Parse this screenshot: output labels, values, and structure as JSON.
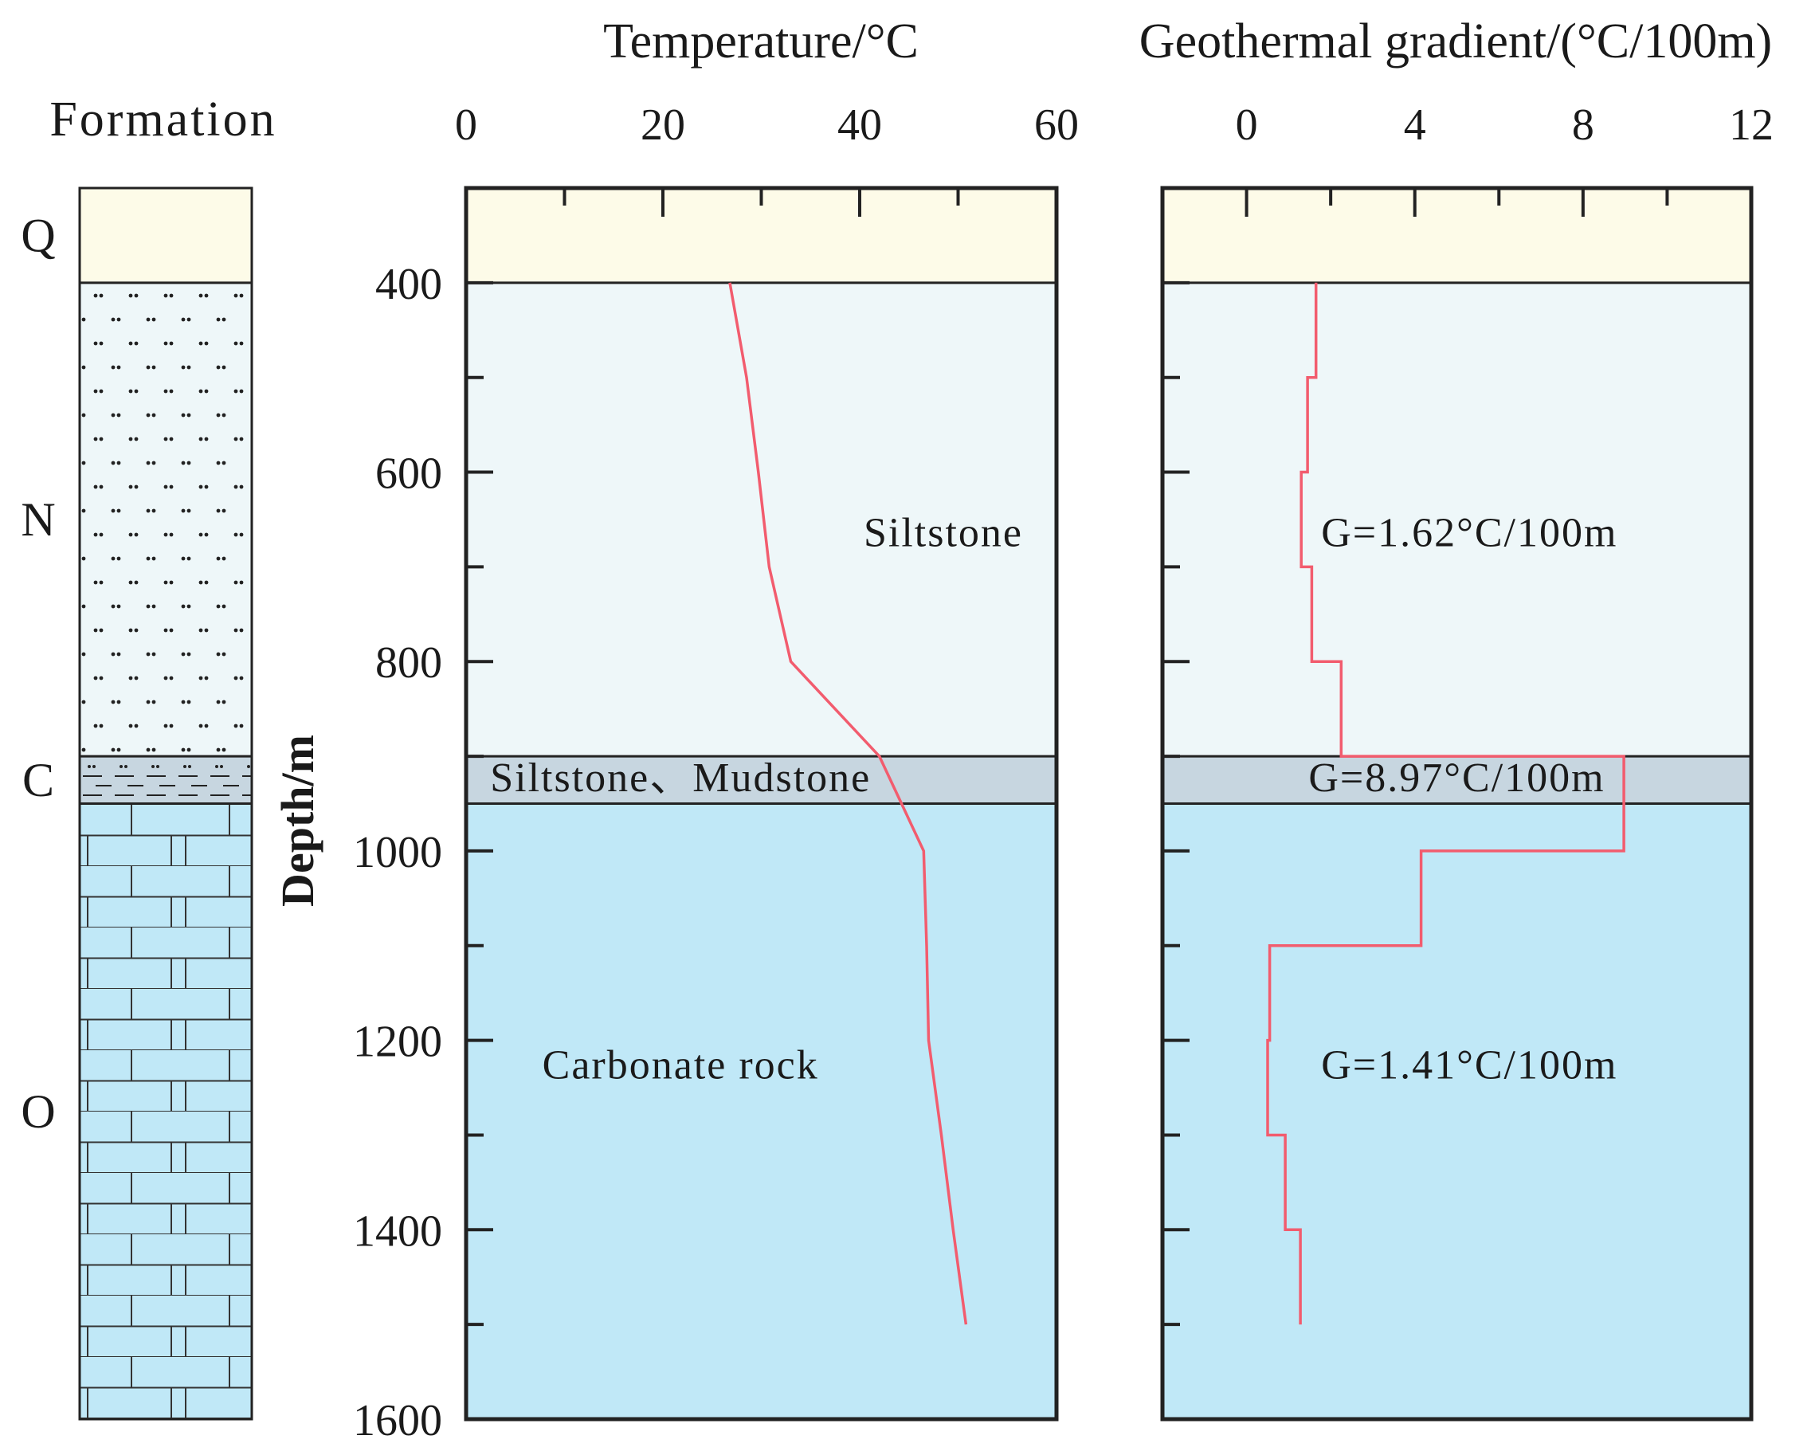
{
  "column": {
    "title": "Formation",
    "formations": [
      {
        "label": "Q",
        "top": 300,
        "bottom": 400,
        "lithology": "cover",
        "color": "#fdfbe8"
      },
      {
        "label": "N",
        "top": 400,
        "bottom": 900,
        "lithology": "siltstone",
        "color": "#eef7f9"
      },
      {
        "label": "C",
        "top": 900,
        "bottom": 950,
        "lithology": "siltstone-mudstone",
        "color": "#c7d6e0"
      },
      {
        "label": "O",
        "top": 950,
        "bottom": 1600,
        "lithology": "carbonate",
        "color": "#c0e8f7"
      }
    ]
  },
  "chart_data": [
    {
      "type": "line",
      "title": "Temperature/°C",
      "xlabel": "Temperature/°C",
      "ylabel": "Depth/m",
      "xlim": [
        0,
        60
      ],
      "ylim": [
        300,
        1600
      ],
      "y_inverted": true,
      "x_ticks": [
        "0",
        "20",
        "40",
        "60"
      ],
      "y_ticks": [
        "400",
        "600",
        "800",
        "1000",
        "1200",
        "1400",
        "1600"
      ],
      "series": [
        {
          "name": "Temperature",
          "color": "#f25c6e",
          "points": [
            [
              26.8,
              400
            ],
            [
              28.5,
              500
            ],
            [
              29.7,
              600
            ],
            [
              30.8,
              700
            ],
            [
              33.0,
              800
            ],
            [
              42.0,
              900
            ],
            [
              46.5,
              1000
            ],
            [
              46.8,
              1100
            ],
            [
              47.0,
              1200
            ],
            [
              48.3,
              1300
            ],
            [
              49.5,
              1400
            ],
            [
              50.8,
              1500
            ]
          ]
        }
      ],
      "annotations": [
        {
          "text": "Siltstone",
          "x": 48.5,
          "y": 663
        },
        {
          "text": "Siltstone、Mudstone",
          "x": 21.8,
          "y": 922
        },
        {
          "text": "Carbonate rock",
          "x": 21.8,
          "y": 1225
        }
      ]
    },
    {
      "type": "line",
      "title": "Geothermal gradient/(°C/100m)",
      "xlabel": "Geothermal gradient/(°C/100m)",
      "ylabel": "Depth/m",
      "xlim": [
        -2,
        12
      ],
      "ylim": [
        300,
        1600
      ],
      "y_inverted": true,
      "x_ticks": [
        "0",
        "4",
        "8",
        "12"
      ],
      "series": [
        {
          "name": "Geothermal gradient",
          "color": "#f25c6e",
          "segments": [
            {
              "from": 400,
              "to": 500,
              "value": 1.65
            },
            {
              "from": 500,
              "to": 600,
              "value": 1.45
            },
            {
              "from": 600,
              "to": 700,
              "value": 1.3
            },
            {
              "from": 700,
              "to": 800,
              "value": 1.55
            },
            {
              "from": 800,
              "to": 900,
              "value": 2.25
            },
            {
              "from": 900,
              "to": 1000,
              "value": 8.97
            },
            {
              "from": 1000,
              "to": 1100,
              "value": 4.15
            },
            {
              "from": 1100,
              "to": 1200,
              "value": 0.55
            },
            {
              "from": 1200,
              "to": 1300,
              "value": 0.5
            },
            {
              "from": 1300,
              "to": 1400,
              "value": 0.92
            },
            {
              "from": 1400,
              "to": 1500,
              "value": 1.28
            }
          ]
        }
      ],
      "annotations": [
        {
          "text": "G=1.62°C/100m",
          "x": 5.3,
          "y": 663
        },
        {
          "text": "G=8.97°C/100m",
          "x": 5.0,
          "y": 922
        },
        {
          "text": "G=1.41°C/100m",
          "x": 5.3,
          "y": 1225
        }
      ]
    }
  ]
}
